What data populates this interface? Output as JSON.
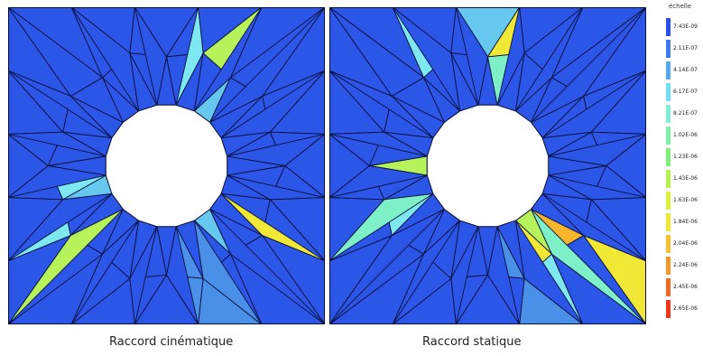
{
  "panels": [
    {
      "caption": "Raccord cinématique",
      "base_color": "#2b56e8",
      "accents": [
        {
          "tri": "inner-top-1",
          "color": "#7de8f0"
        },
        {
          "tri": "inner-top-2",
          "color": "#b6f25a"
        },
        {
          "tri": "inner-top-3",
          "color": "#66c8ee"
        },
        {
          "tri": "inner-top-4",
          "color": "#7de8f0"
        },
        {
          "tri": "inner-left-1",
          "color": "#66c8ee"
        },
        {
          "tri": "inner-left-2",
          "color": "#f0e834"
        },
        {
          "tri": "inner-left-3",
          "color": "#7de8f0"
        },
        {
          "tri": "inner-right-1",
          "color": "#f0e834"
        },
        {
          "tri": "inner-right-2",
          "color": "#66c8ee"
        },
        {
          "tri": "inner-bottom-1",
          "color": "#b6f25a"
        },
        {
          "tri": "inner-bottom-2",
          "color": "#7de8f0"
        },
        {
          "tri": "inner-bottom-3",
          "color": "#66c8ee"
        },
        {
          "tri": "ring-1",
          "color": "#4a90e8"
        },
        {
          "tri": "ring-2",
          "color": "#4a90e8"
        },
        {
          "tri": "ring-3",
          "color": "#4a90e8"
        },
        {
          "tri": "ring-4",
          "color": "#4a90e8"
        }
      ]
    },
    {
      "caption": "Raccord statique",
      "base_color": "#2b56e8",
      "accents": [
        {
          "tri": "corner-tl-1",
          "color": "#7df0c8"
        },
        {
          "tri": "corner-tl-2",
          "color": "#b6f25a"
        },
        {
          "tri": "corner-tr-1",
          "color": "#b6f25a"
        },
        {
          "tri": "corner-tr-2",
          "color": "#f0e834"
        },
        {
          "tri": "corner-bl-1",
          "color": "#f7b52b"
        },
        {
          "tri": "corner-bl-2",
          "color": "#f0e834"
        },
        {
          "tri": "corner-br-1",
          "color": "#f53a18"
        },
        {
          "tri": "corner-br-2",
          "color": "#f0e834"
        },
        {
          "tri": "edge-top-1",
          "color": "#7de8f0"
        },
        {
          "tri": "edge-top-2",
          "color": "#7df0c8"
        },
        {
          "tri": "edge-bottom-1",
          "color": "#7df0c8"
        },
        {
          "tri": "edge-bottom-2",
          "color": "#66c8ee"
        },
        {
          "tri": "edge-left-1",
          "color": "#7de8f0"
        },
        {
          "tri": "edge-right-1",
          "color": "#7de8f0"
        },
        {
          "tri": "ring-1",
          "color": "#4a90e8"
        },
        {
          "tri": "ring-2",
          "color": "#4a90e8"
        }
      ]
    }
  ],
  "legend": {
    "title": "échelle",
    "items": [
      {
        "label": "7.43E-09",
        "color": "#2a4ff0"
      },
      {
        "label": "2.11E-07",
        "color": "#3f78ef"
      },
      {
        "label": "4.14E-07",
        "color": "#56a8ee"
      },
      {
        "label": "6.17E-07",
        "color": "#6fe0f2"
      },
      {
        "label": "8.21E-07",
        "color": "#7ff0d8"
      },
      {
        "label": "1.02E-06",
        "color": "#80f0a8"
      },
      {
        "label": "1.23E-06",
        "color": "#7ef07a"
      },
      {
        "label": "1.43E-06",
        "color": "#b4f24c"
      },
      {
        "label": "1.63E-06",
        "color": "#dcf03a"
      },
      {
        "label": "1.84E-06",
        "color": "#f2e834"
      },
      {
        "label": "2.04E-06",
        "color": "#f5c12e"
      },
      {
        "label": "2.24E-06",
        "color": "#f59a28"
      },
      {
        "label": "2.45E-06",
        "color": "#f56a22"
      },
      {
        "label": "2.65E-06",
        "color": "#f5351c"
      }
    ]
  }
}
